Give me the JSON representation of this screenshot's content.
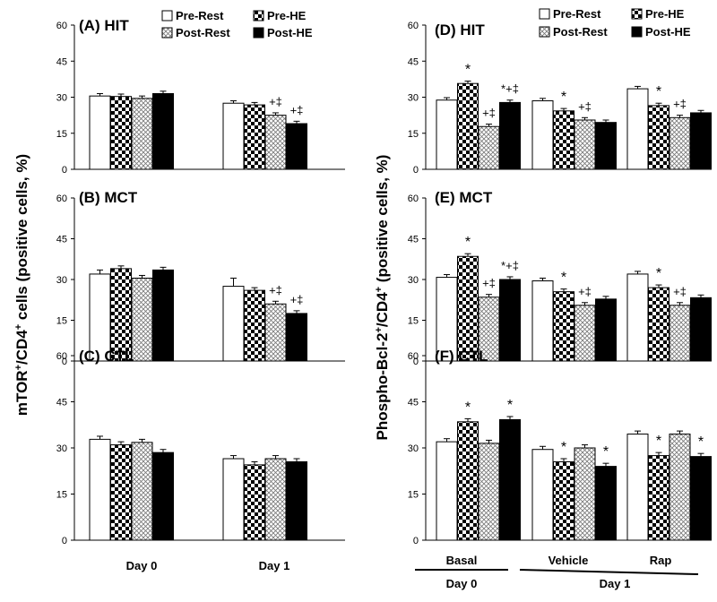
{
  "patterns": [
    "white",
    "checker",
    "crosshatch",
    "black"
  ],
  "legend": {
    "items": [
      {
        "label": "Pre-Rest",
        "pattern": "white"
      },
      {
        "label": "Pre-HE",
        "pattern": "checker"
      },
      {
        "label": "Post-Rest",
        "pattern": "crosshatch"
      },
      {
        "label": "Post-HE",
        "pattern": "black"
      }
    ]
  },
  "left_ylabel_main": "mTOR",
  "left_ylabel_rest": "/CD4",
  "left_ylabel_tail": " cells (positive cells, %)",
  "right_ylabel_main": "Phospho-Bcl-2",
  "right_ylabel_rest": "/CD4",
  "right_ylabel_tail": " (positive cells, %)",
  "sup_plus": "+",
  "left_group_labels": [
    "Day 0",
    "Day 1"
  ],
  "right_group_labels": [
    "Basal",
    "Vehicle",
    "Rap"
  ],
  "right_day_labels": [
    "Day 0",
    "Day 1"
  ],
  "chart_data": [
    {
      "type": "bar",
      "title": "(A) HIT",
      "ylim": [
        0,
        60
      ],
      "yticks": [
        0,
        15,
        30,
        45,
        60
      ],
      "categories": [
        "Day 0",
        "Day 1"
      ],
      "series": [
        {
          "name": "Pre-Rest",
          "values": [
            30.5,
            27.5
          ],
          "errors": [
            1,
            1
          ]
        },
        {
          "name": "Pre-HE",
          "values": [
            30.3,
            26.8
          ],
          "errors": [
            1,
            1
          ]
        },
        {
          "name": "Post-Rest",
          "values": [
            29.5,
            22.5
          ],
          "errors": [
            1,
            1
          ]
        },
        {
          "name": "Post-HE",
          "values": [
            31.5,
            19.0
          ],
          "errors": [
            1,
            1
          ]
        }
      ],
      "annotations": [
        [
          "",
          "",
          "",
          ""
        ],
        [
          "",
          "",
          "+‡",
          "+‡"
        ]
      ]
    },
    {
      "type": "bar",
      "title": "(B) MCT",
      "ylim": [
        0,
        60
      ],
      "yticks": [
        0,
        15,
        30,
        45,
        60
      ],
      "categories": [
        "Day 0",
        "Day 1"
      ],
      "series": [
        {
          "name": "Pre-Rest",
          "values": [
            32.0,
            27.5
          ],
          "errors": [
            1.5,
            3
          ]
        },
        {
          "name": "Pre-HE",
          "values": [
            34.0,
            26.0
          ],
          "errors": [
            1,
            1
          ]
        },
        {
          "name": "Post-Rest",
          "values": [
            30.5,
            21.0
          ],
          "errors": [
            1,
            1
          ]
        },
        {
          "name": "Post-HE",
          "values": [
            33.5,
            17.5
          ],
          "errors": [
            1,
            1
          ]
        }
      ],
      "annotations": [
        [
          "",
          "",
          "",
          ""
        ],
        [
          "",
          "",
          "+‡",
          "+‡"
        ]
      ]
    },
    {
      "type": "bar",
      "title": "(C) CTL",
      "ylim": [
        0,
        60
      ],
      "yticks": [
        0,
        15,
        30,
        45,
        60
      ],
      "categories": [
        "Day 0",
        "Day 1"
      ],
      "series": [
        {
          "name": "Pre-Rest",
          "values": [
            32.8,
            26.5
          ],
          "errors": [
            1,
            1
          ]
        },
        {
          "name": "Pre-HE",
          "values": [
            31.0,
            24.5
          ],
          "errors": [
            1,
            1
          ]
        },
        {
          "name": "Post-Rest",
          "values": [
            31.8,
            26.5
          ],
          "errors": [
            1,
            1
          ]
        },
        {
          "name": "Post-HE",
          "values": [
            28.5,
            25.5
          ],
          "errors": [
            1,
            1
          ]
        }
      ],
      "annotations": [
        [
          "",
          "",
          "",
          ""
        ],
        [
          "",
          "",
          "",
          ""
        ]
      ]
    },
    {
      "type": "bar",
      "title": "(D) HIT",
      "ylim": [
        0,
        60
      ],
      "yticks": [
        0,
        15,
        30,
        45,
        60
      ],
      "categories": [
        "Basal",
        "Vehicle",
        "Rap"
      ],
      "series": [
        {
          "name": "Pre-Rest",
          "values": [
            28.8,
            28.5,
            33.5
          ],
          "errors": [
            1,
            1,
            1
          ]
        },
        {
          "name": "Pre-HE",
          "values": [
            35.7,
            24.3,
            26.5
          ],
          "errors": [
            1,
            1,
            1
          ]
        },
        {
          "name": "Post-Rest",
          "values": [
            17.8,
            20.5,
            21.5
          ],
          "errors": [
            1,
            1,
            1
          ]
        },
        {
          "name": "Post-HE",
          "values": [
            27.8,
            19.5,
            23.5
          ],
          "errors": [
            1,
            1,
            1
          ]
        }
      ],
      "annotations": [
        [
          "",
          "*",
          "+‡",
          "*+‡"
        ],
        [
          "",
          "*",
          "+‡",
          ""
        ],
        [
          "",
          "*",
          "+‡",
          ""
        ]
      ]
    },
    {
      "type": "bar",
      "title": "(E) MCT",
      "ylim": [
        0,
        60
      ],
      "yticks": [
        0,
        15,
        30,
        45,
        60
      ],
      "categories": [
        "Basal",
        "Vehicle",
        "Rap"
      ],
      "series": [
        {
          "name": "Pre-Rest",
          "values": [
            30.8,
            29.5,
            32.0
          ],
          "errors": [
            1,
            1,
            1
          ]
        },
        {
          "name": "Pre-HE",
          "values": [
            38.5,
            25.5,
            27.0
          ],
          "errors": [
            1,
            1,
            1
          ]
        },
        {
          "name": "Post-Rest",
          "values": [
            23.5,
            20.5,
            20.5
          ],
          "errors": [
            1,
            1,
            1
          ]
        },
        {
          "name": "Post-HE",
          "values": [
            30.0,
            22.8,
            23.3
          ],
          "errors": [
            1,
            1,
            1
          ]
        }
      ],
      "annotations": [
        [
          "",
          "*",
          "+‡",
          "*+‡"
        ],
        [
          "",
          "*",
          "+‡",
          ""
        ],
        [
          "",
          "*",
          "+‡",
          ""
        ]
      ]
    },
    {
      "type": "bar",
      "title": "(F) CTL",
      "ylim": [
        0,
        60
      ],
      "yticks": [
        0,
        15,
        30,
        45,
        60
      ],
      "categories": [
        "Basal",
        "Vehicle",
        "Rap"
      ],
      "series": [
        {
          "name": "Pre-Rest",
          "values": [
            32.0,
            29.5,
            34.5
          ],
          "errors": [
            1,
            1,
            1
          ]
        },
        {
          "name": "Pre-HE",
          "values": [
            38.5,
            25.5,
            27.5
          ],
          "errors": [
            1,
            1,
            1
          ]
        },
        {
          "name": "Post-Rest",
          "values": [
            31.5,
            30.0,
            34.5
          ],
          "errors": [
            1,
            1,
            1
          ]
        },
        {
          "name": "Post-HE",
          "values": [
            39.2,
            24.0,
            27.2
          ],
          "errors": [
            1,
            1,
            1
          ]
        }
      ],
      "annotations": [
        [
          "",
          "*",
          "",
          "*"
        ],
        [
          "",
          "*",
          "",
          "*"
        ],
        [
          "",
          "*",
          "",
          "*"
        ]
      ]
    }
  ]
}
